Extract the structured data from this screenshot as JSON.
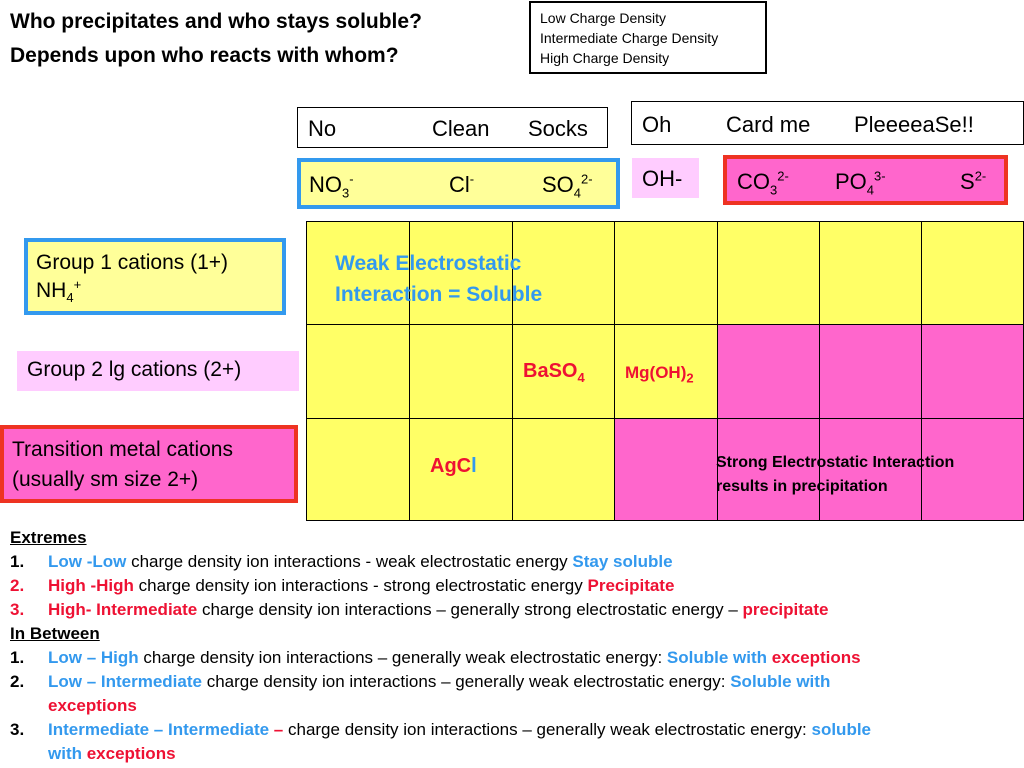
{
  "title_line1": "Who precipitates and who stays soluble?",
  "title_line2": "Depends upon who reacts with whom?",
  "legend": [
    "Low Charge Density",
    "Intermediate Charge Density",
    "High Charge Density"
  ],
  "mnemonic_left": {
    "w1": "No",
    "w2": "Clean",
    "w3": "Socks"
  },
  "mnemonic_right": {
    "w1": "Oh",
    "w2": "Card me",
    "w3": "PleeeeaSe!!"
  },
  "anions_low": {
    "a1_base": "NO",
    "a1_sub": "3",
    "a1_sup": "-",
    "a2_base": "Cl",
    "a2_sup": "-",
    "a3_base": "SO",
    "a3_sub": "4",
    "a3_sup": "2-"
  },
  "anion_mid": "OH-",
  "anions_high": {
    "a1_base": "CO",
    "a1_sub": "3",
    "a1_sup": "2-",
    "a2_base": "PO",
    "a2_sub": "4",
    "a2_sup": "3-",
    "a3_base": "S",
    "a3_sup": "2-"
  },
  "row_labels": {
    "group1_line1": "Group 1 cations (1+)",
    "group1_line2_base": "NH",
    "group1_line2_sub": "4",
    "group1_line2_sup": "+",
    "group2": "Group 2 lg cations (2+)",
    "transition_line1": "Transition metal cations",
    "transition_line2": "(usually sm size 2+)"
  },
  "grid_text": {
    "weak_line1": "Weak Electrostatic",
    "weak_line2": "Interaction = Soluble",
    "baso4_base": "BaSO",
    "baso4_sub": "4",
    "mgoh2_base": "Mg(OH)",
    "mgoh2_sub": "2",
    "agcl_a": "AgC",
    "agcl_b": "l",
    "strong_line1": "Strong Electrostatic Interaction",
    "strong_line2": "results in precipitation"
  },
  "notes": {
    "extremes_heading": "Extremes",
    "e1_num": "1.",
    "e1_a": "Low -Low",
    "e1_b": " charge density ion interactions - weak electrostatic energy   ",
    "e1_c": "Stay soluble",
    "e2_num": "2.",
    "e2_a": "High -High",
    "e2_b": " charge density ion interactions - strong electrostatic energy  ",
    "e2_c": "Precipitate",
    "e3_num": "3.",
    "e3_a": "High- Intermediate",
    "e3_b": " charge density ion interactions – generally strong electrostatic energy – ",
    "e3_c": "precipitate",
    "between_heading": "In Between",
    "b1_num": "1.",
    "b1_a": "Low – High",
    "b1_b": " charge density ion interactions – generally weak electrostatic energy:  ",
    "b1_c": "Soluble with ",
    "b1_d": "exceptions",
    "b2_num": "2.",
    "b2_a": "Low – Intermediate",
    "b2_b": " charge density ion interactions – generally weak electrostatic energy:  ",
    "b2_c": "Soluble with",
    "b2_d": "exceptions",
    "b3_num": "3.",
    "b3_a": "Intermediate – Intermediate",
    "b3_dash": " –",
    "b3_b": " charge density ion interactions – generally weak electrostatic energy: ",
    "b3_c": "soluble",
    "b3_d": "with ",
    "b3_e": "exceptions"
  },
  "colors": {
    "yellow": "#ffff66",
    "pink": "#ff66cc",
    "light_yellow": "#ffff99",
    "light_pink": "#ffccff",
    "blue": "#3399ee",
    "red": "#ee1133"
  }
}
